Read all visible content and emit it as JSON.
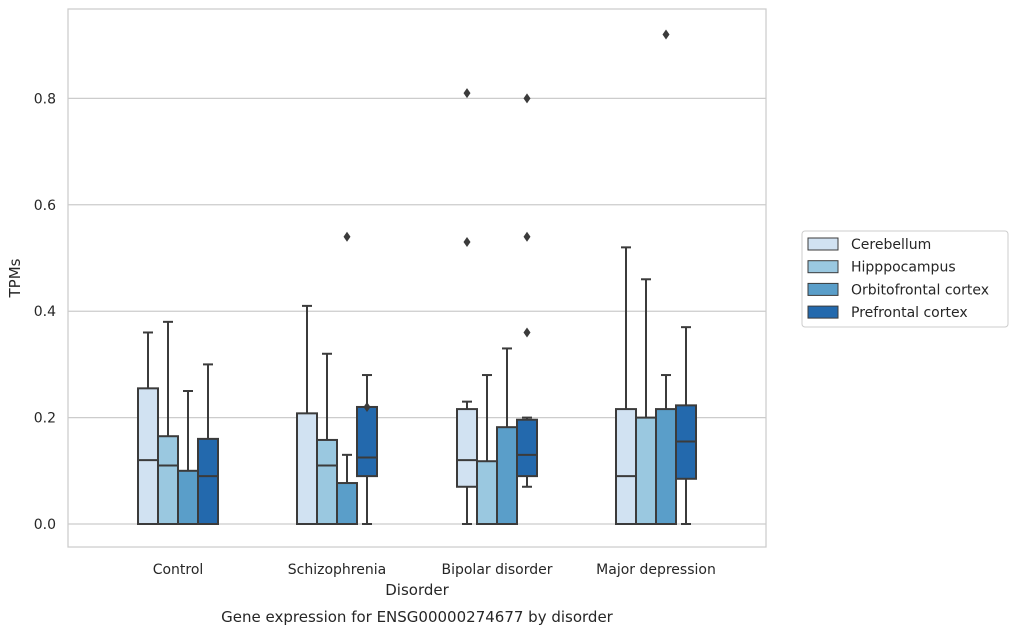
{
  "chart_data": {
    "type": "box",
    "title": "Gene expression for ENSG00000274677 by disorder",
    "xlabel": "Disorder",
    "ylabel": "TPMs",
    "ylim": [
      -0.045,
      0.965
    ],
    "yticks": [
      "0.0",
      "0.2",
      "0.4",
      "0.6",
      "0.8"
    ],
    "grid": "horizontal",
    "legend_position": "right",
    "categories": [
      "Control",
      "Schizophrenia",
      "Bipolar disorder",
      "Major depression"
    ],
    "series": [
      {
        "name": "Cerebellum",
        "color": "#d1e2f2",
        "boxes": [
          {
            "min": 0.0,
            "q1": 0.0,
            "median": 0.12,
            "q3": 0.255,
            "max": 0.36,
            "outliers": []
          },
          {
            "min": 0.0,
            "q1": 0.0,
            "median": 0.0,
            "q3": 0.208,
            "max": 0.41,
            "outliers": []
          },
          {
            "min": 0.0,
            "q1": 0.07,
            "median": 0.12,
            "q3": 0.216,
            "max": 0.23,
            "outliers": [
              0.53,
              0.81
            ]
          },
          {
            "min": 0.0,
            "q1": 0.0,
            "median": 0.09,
            "q3": 0.216,
            "max": 0.52,
            "outliers": []
          }
        ]
      },
      {
        "name": "Hipppocampus",
        "color": "#9ac8e0",
        "boxes": [
          {
            "min": 0.0,
            "q1": 0.0,
            "median": 0.11,
            "q3": 0.165,
            "max": 0.38,
            "outliers": []
          },
          {
            "min": 0.0,
            "q1": 0.0,
            "median": 0.11,
            "q3": 0.158,
            "max": 0.32,
            "outliers": []
          },
          {
            "min": 0.0,
            "q1": 0.0,
            "median": 0.0,
            "q3": 0.118,
            "max": 0.28,
            "outliers": []
          },
          {
            "min": 0.0,
            "q1": 0.0,
            "median": 0.0,
            "q3": 0.2,
            "max": 0.46,
            "outliers": []
          }
        ]
      },
      {
        "name": "Orbitofrontal cortex",
        "color": "#5a9ec9",
        "boxes": [
          {
            "min": 0.0,
            "q1": 0.0,
            "median": 0.0,
            "q3": 0.1,
            "max": 0.25,
            "outliers": []
          },
          {
            "min": 0.0,
            "q1": 0.0,
            "median": 0.0,
            "q3": 0.077,
            "max": 0.13,
            "outliers": [
              0.54
            ]
          },
          {
            "min": 0.0,
            "q1": 0.0,
            "median": 0.0,
            "q3": 0.182,
            "max": 0.33,
            "outliers": []
          },
          {
            "min": 0.0,
            "q1": 0.0,
            "median": 0.0,
            "q3": 0.216,
            "max": 0.28,
            "outliers": [
              0.92
            ]
          }
        ]
      },
      {
        "name": "Prefrontal cortex",
        "color": "#2369ad",
        "boxes": [
          {
            "min": 0.0,
            "q1": 0.0,
            "median": 0.09,
            "q3": 0.16,
            "max": 0.3,
            "outliers": []
          },
          {
            "min": 0.0,
            "q1": 0.09,
            "median": 0.125,
            "q3": 0.22,
            "max": 0.28,
            "outliers": [
              0.22
            ]
          },
          {
            "min": 0.07,
            "q1": 0.09,
            "median": 0.13,
            "q3": 0.196,
            "max": 0.2,
            "outliers": [
              0.36,
              0.54,
              0.8
            ]
          },
          {
            "min": 0.0,
            "q1": 0.085,
            "median": 0.155,
            "q3": 0.223,
            "max": 0.37,
            "outliers": []
          }
        ]
      }
    ]
  }
}
